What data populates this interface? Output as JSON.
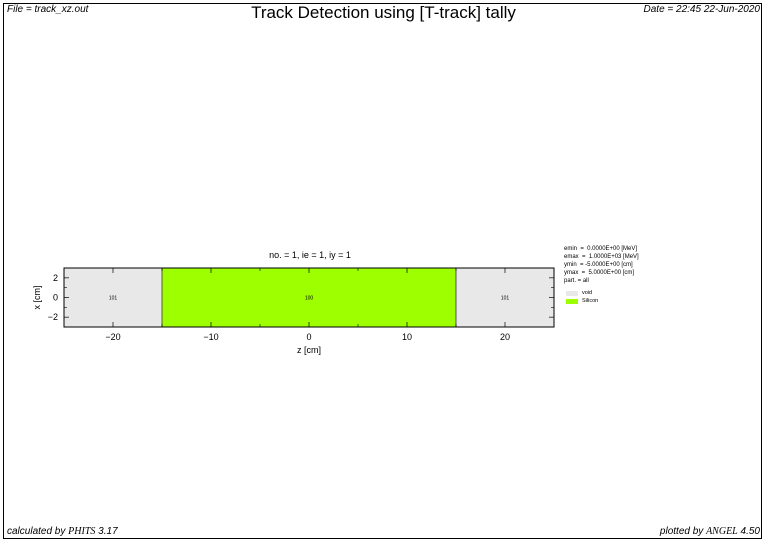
{
  "header": {
    "file": "File = track_xz.out",
    "title": "Track Detection using [T-track] tally",
    "date": "Date = 22:45 22-Jun-2020"
  },
  "footer": {
    "calculated_prefix": "calculated by ",
    "calculated_code": "PHITS",
    "calculated_version": " 3.17",
    "plotted_prefix": "plotted by ",
    "plotted_code": "ANGEL",
    "plotted_version": " 4.50"
  },
  "plot_info": "no. =  1,  ie =  1,  iy =  1",
  "stats": [
    "emin  =  0.0000E+00 [MeV]",
    "emax  =  1.0000E+03 [MeV]",
    "ymin  = -5.0000E+00 [cm]",
    "ymax  =  5.0000E+00 [cm]",
    "part. = all"
  ],
  "legend": [
    {
      "label": "void",
      "color": "#e8e8e8"
    },
    {
      "label": "Silicon",
      "color": "#9dff00"
    }
  ],
  "chart_data": {
    "type": "heatmap",
    "xlabel": "z [cm]",
    "ylabel": "x [cm]",
    "xlim": [
      -25,
      25
    ],
    "ylim": [
      -3,
      3
    ],
    "xticks": [
      -20,
      -10,
      0,
      10,
      20
    ],
    "yticks": [
      -2,
      0,
      2
    ],
    "regions": [
      {
        "label": "101",
        "material": "void",
        "z": [
          -25,
          -15
        ],
        "color": "#e8e8e8"
      },
      {
        "label": "100",
        "material": "Silicon",
        "z": [
          -15,
          15
        ],
        "color": "#9dff00"
      },
      {
        "label": "101",
        "material": "void",
        "z": [
          15,
          25
        ],
        "color": "#e8e8e8"
      }
    ]
  }
}
